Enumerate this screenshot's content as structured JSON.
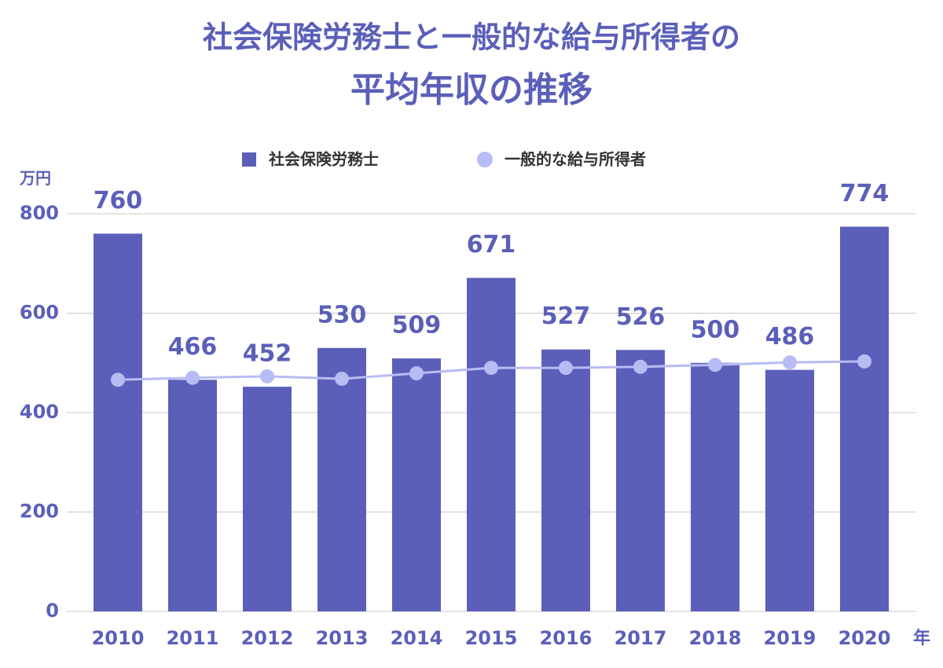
{
  "chart_data": {
    "type": "bar",
    "title": [
      "社会保険労務士と一般的な給与所得者の",
      "平均年収の推移"
    ],
    "y_label": "万円",
    "x_label": "年",
    "categories": [
      "2010",
      "2011",
      "2012",
      "2013",
      "2014",
      "2015",
      "2016",
      "2017",
      "2018",
      "2019",
      "2020"
    ],
    "series": [
      {
        "name": "社会保険労務士",
        "type": "bar",
        "color": "#5b5fb9",
        "values": [
          760,
          466,
          452,
          530,
          509,
          671,
          527,
          526,
          500,
          486,
          774
        ]
      },
      {
        "name": "一般的な給与所得者",
        "type": "line",
        "color": "#b8bcf4",
        "values": [
          466,
          470,
          473,
          468,
          479,
          490,
          490,
          492,
          496,
          501,
          503
        ]
      }
    ],
    "ylim": [
      0,
      800
    ],
    "yticks": [
      0,
      200,
      400,
      600,
      800
    ],
    "grid": true,
    "legend": "top"
  }
}
